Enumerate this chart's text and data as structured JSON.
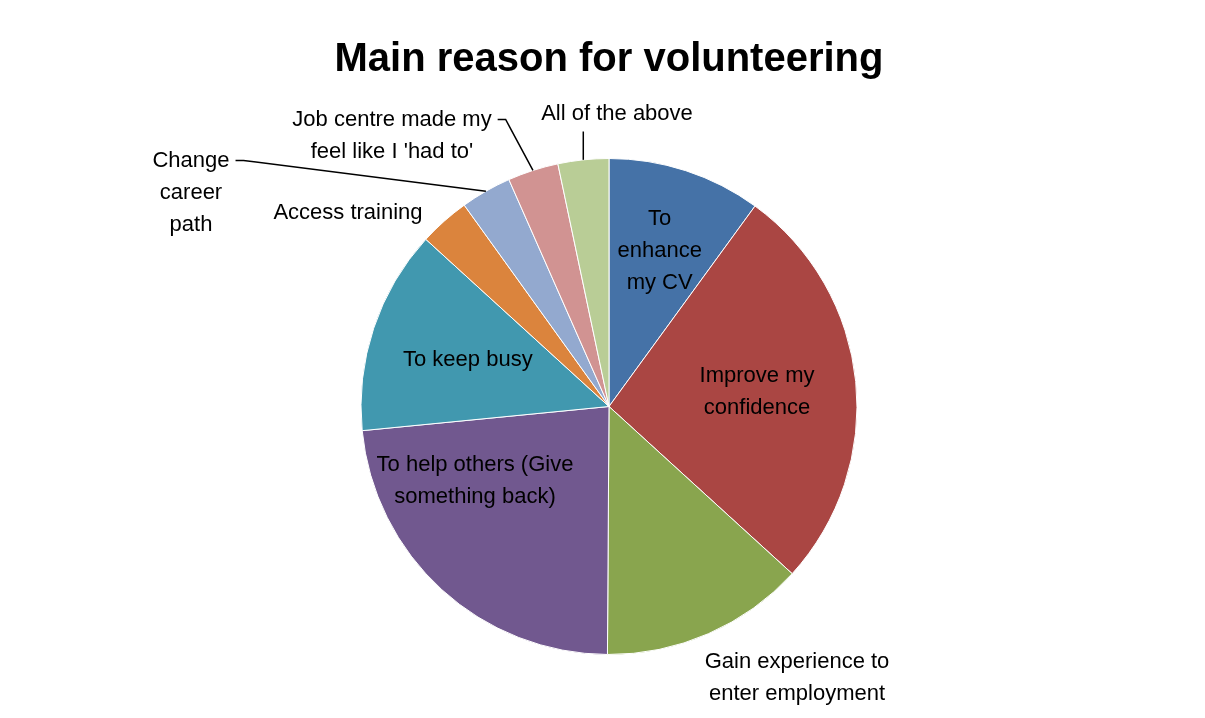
{
  "chart_data": {
    "type": "pie",
    "title": "Main reason for volunteering",
    "categories": [
      "To enhance my CV",
      "Improve my confidence",
      "Gain experience to enter employment",
      "To help others (Give something back)",
      "To keep busy",
      "Access training",
      "Change career path",
      "Job centre made my feel like I 'had to'",
      "All of the above"
    ],
    "values": [
      10,
      26.7,
      13.3,
      23.3,
      13.3,
      3.3,
      3.3,
      3.3,
      3.3
    ],
    "colors": [
      "#4572a7",
      "#aa4643",
      "#89a54e",
      "#71588f",
      "#4198af",
      "#db843d",
      "#93a9cf",
      "#d19392",
      "#b9cd96"
    ],
    "legend": false
  }
}
